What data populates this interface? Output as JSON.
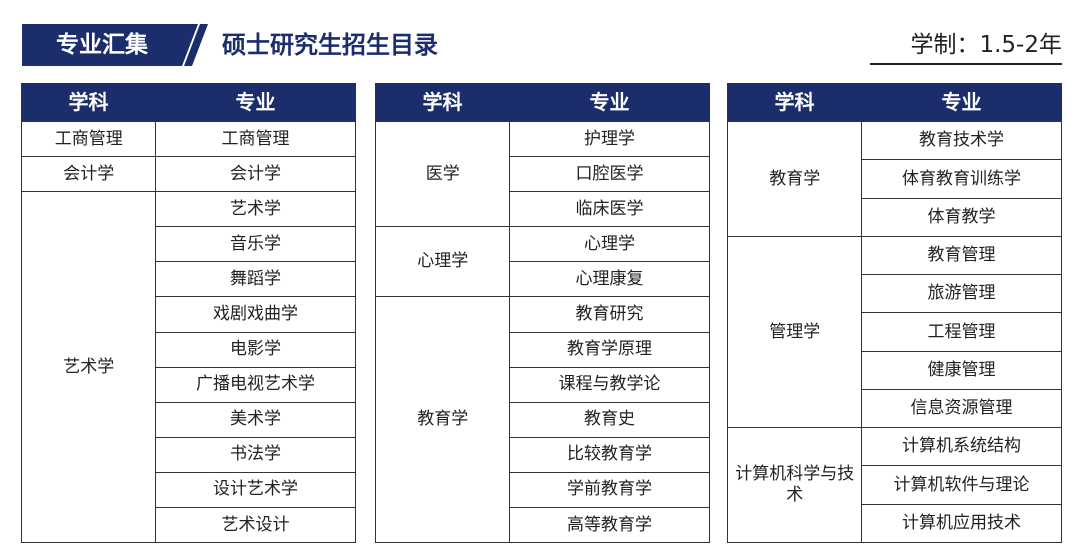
{
  "header": {
    "tag": "专业汇集",
    "title": "硕士研究生招生目录",
    "duration": "学制：1.5-2年"
  },
  "tables": [
    {
      "headers": [
        "学科",
        "专业"
      ],
      "groups": [
        {
          "subject": "工商管理",
          "majors": [
            "工商管理"
          ]
        },
        {
          "subject": "会计学",
          "majors": [
            "会计学"
          ]
        },
        {
          "subject": "艺术学",
          "majors": [
            "艺术学",
            "音乐学",
            "舞蹈学",
            "戏剧戏曲学",
            "电影学",
            "广播电视艺术学",
            "美术学",
            "书法学",
            "设计艺术学",
            "艺术设计"
          ]
        }
      ]
    },
    {
      "headers": [
        "学科",
        "专业"
      ],
      "groups": [
        {
          "subject": "医学",
          "majors": [
            "护理学",
            "口腔医学",
            "临床医学"
          ]
        },
        {
          "subject": "心理学",
          "majors": [
            "心理学",
            "心理康复"
          ]
        },
        {
          "subject": "教育学",
          "majors": [
            "教育研究",
            "教育学原理",
            "课程与教学论",
            "教育史",
            "比较教育学",
            "学前教育学",
            "高等教育学"
          ]
        }
      ]
    },
    {
      "headers": [
        "学科",
        "专业"
      ],
      "groups": [
        {
          "subject": "教育学",
          "majors": [
            "教育技术学",
            "体育教育训练学",
            "体育教学"
          ]
        },
        {
          "subject": "管理学",
          "majors": [
            "教育管理",
            "旅游管理",
            "工程管理",
            "健康管理",
            "信息资源管理"
          ]
        },
        {
          "subject": "计算机科学与技术",
          "majors": [
            "计算机系统结构",
            "计算机软件与理论",
            "计算机应用技术"
          ]
        }
      ]
    }
  ]
}
